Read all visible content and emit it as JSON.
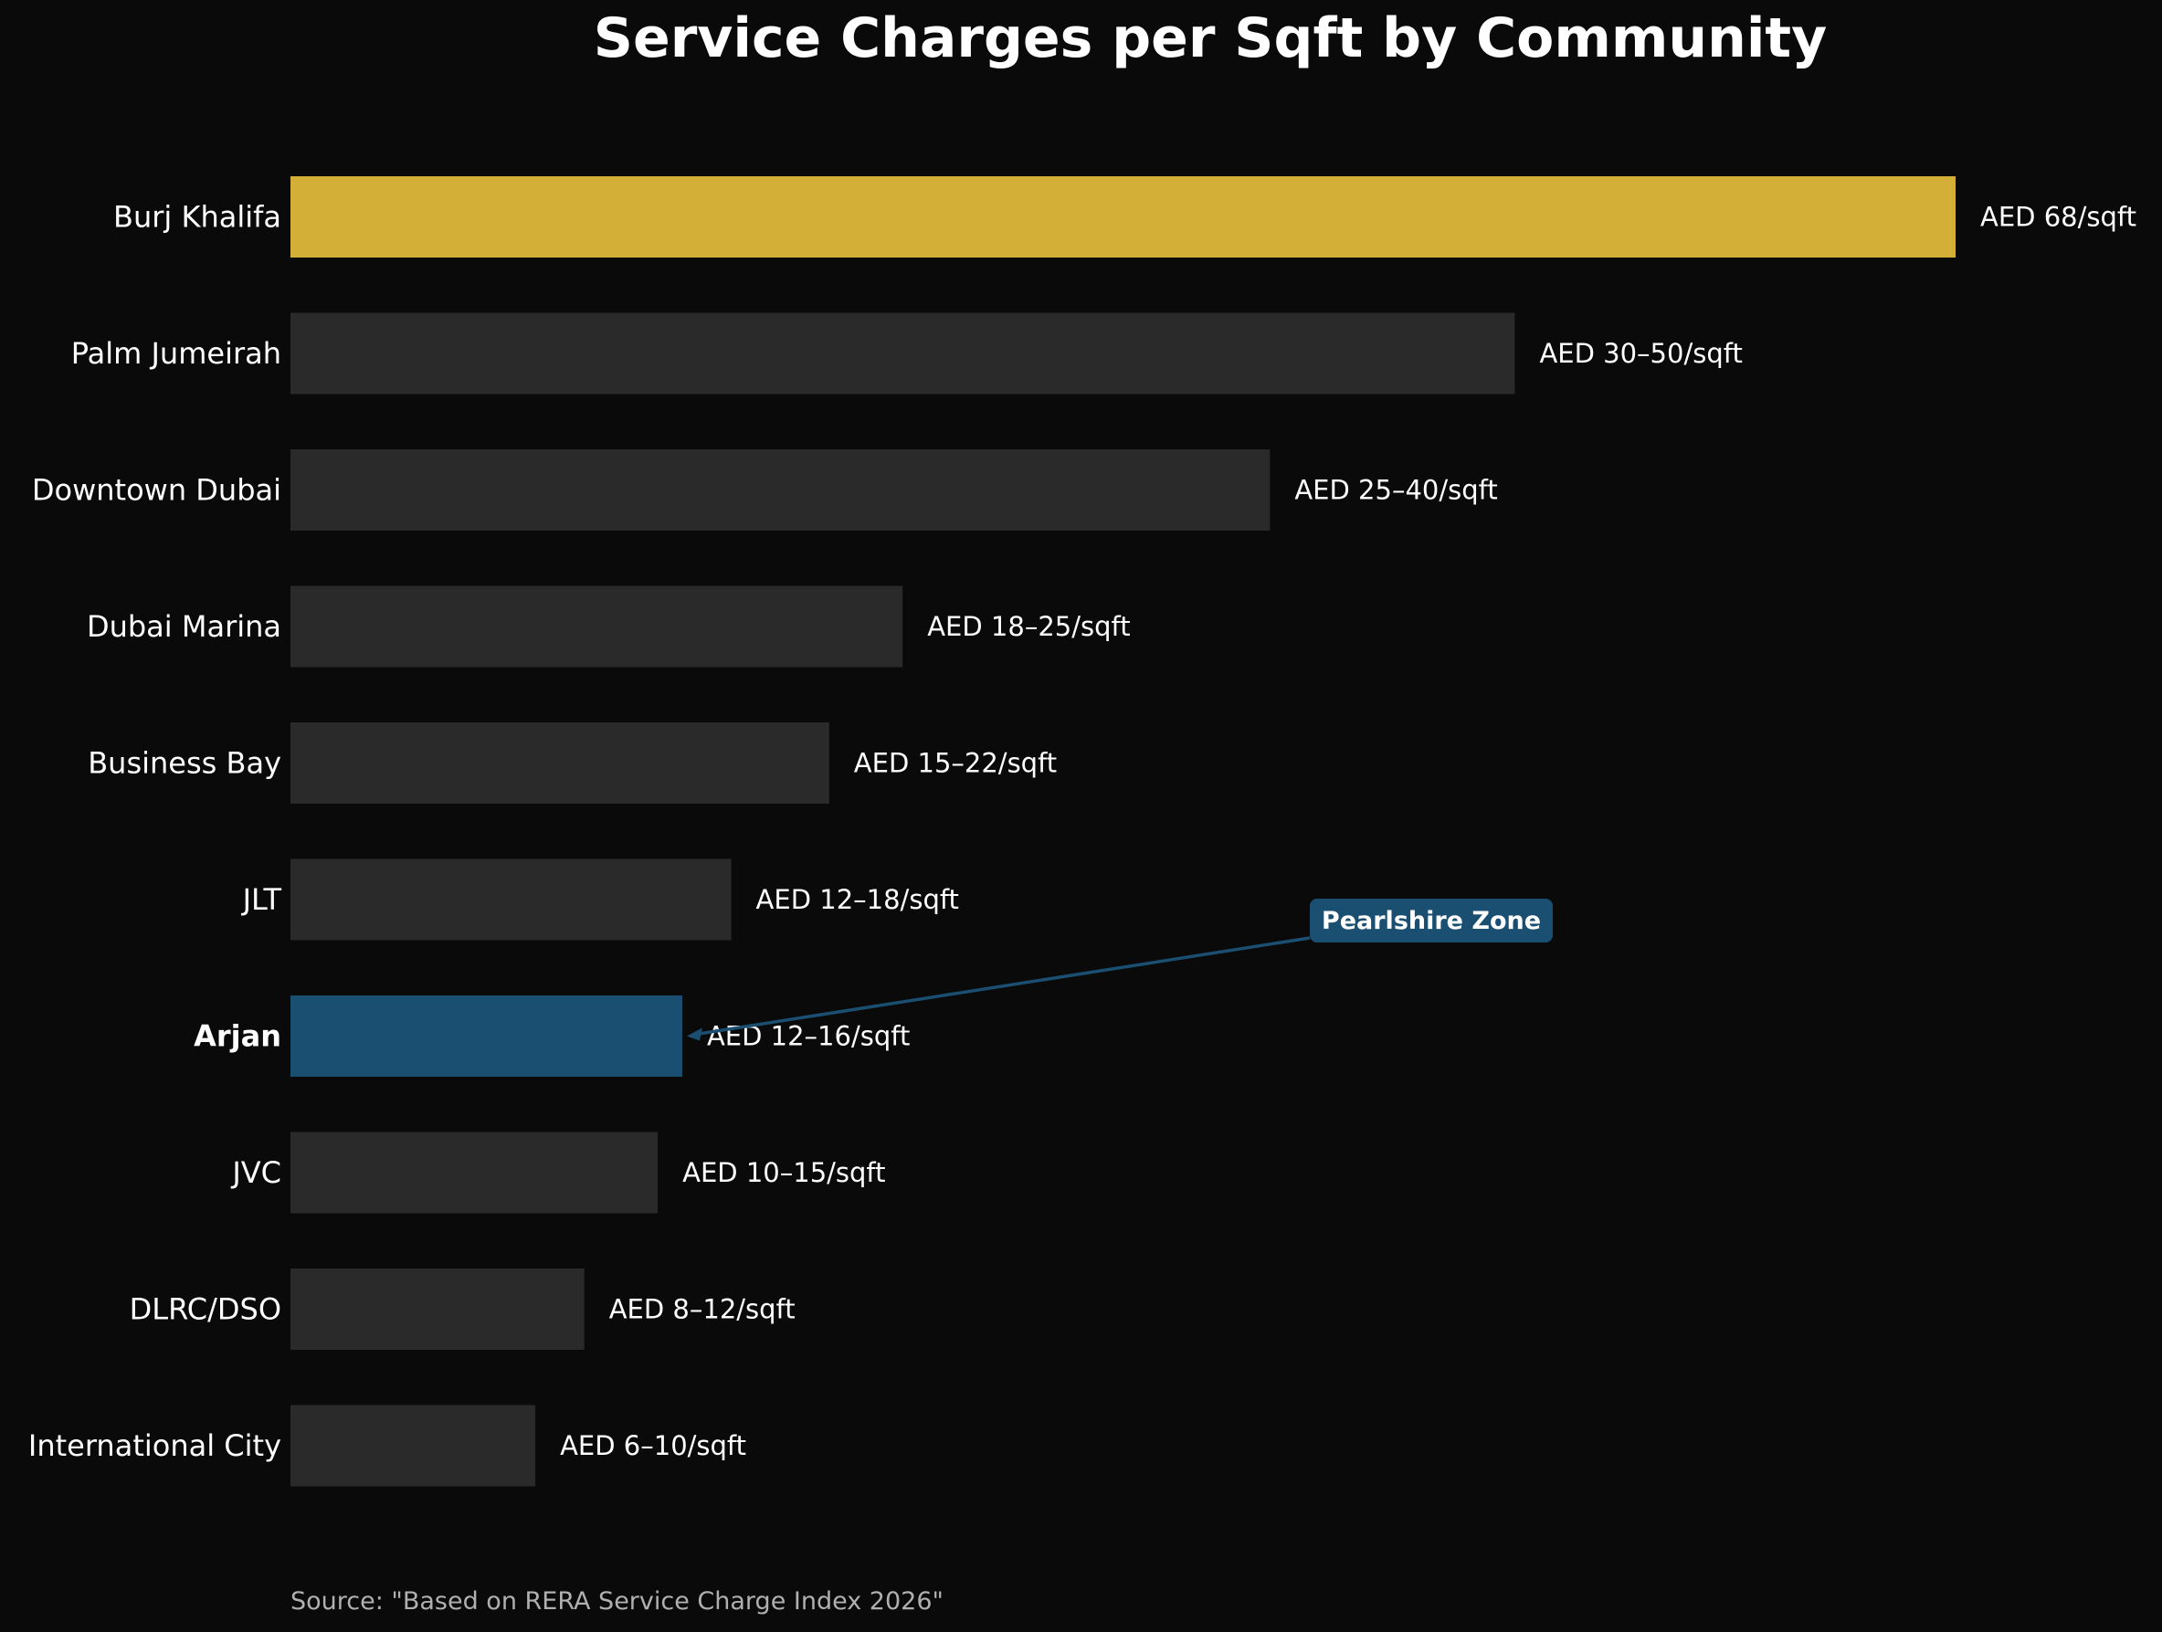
{
  "colors": {
    "background": "#0a0a0a",
    "bar_default": "#2a2a2a",
    "bar_top": "#d4af37",
    "bar_highlight": "#1b4f72",
    "text": "#ffffff",
    "source_text": "#b0b0b0"
  },
  "chart_data": {
    "type": "bar",
    "orientation": "horizontal",
    "title": "Service Charges per Sqft by Community",
    "xlabel": "",
    "ylabel": "",
    "grid": false,
    "xlim": [
      0,
      68
    ],
    "categories": [
      "Burj Khalifa",
      "Palm Jumeirah",
      "Downtown Dubai",
      "Dubai Marina",
      "Business Bay",
      "JLT",
      "Arjan",
      "JVC",
      "DLRC/DSO",
      "International City"
    ],
    "values": [
      68,
      50,
      40,
      25,
      22,
      18,
      16,
      15,
      12,
      10
    ],
    "value_labels": [
      "AED 68/sqft",
      "AED 30–50/sqft",
      "AED 25–40/sqft",
      "AED 18–25/sqft",
      "AED 15–22/sqft",
      "AED 12–18/sqft",
      "AED 12–16/sqft",
      "AED 10–15/sqft",
      "AED 8–12/sqft",
      "AED 6–10/sqft"
    ],
    "bar_colors": [
      "#d4af37",
      "#2a2a2a",
      "#2a2a2a",
      "#2a2a2a",
      "#2a2a2a",
      "#2a2a2a",
      "#1b4f72",
      "#2a2a2a",
      "#2a2a2a",
      "#2a2a2a"
    ],
    "bold_categories": [
      "Arjan"
    ],
    "annotation": {
      "text": "Pearlshire Zone",
      "target_category": "Arjan",
      "box_color": "#1b4f72",
      "arrow_color": "#1b4f72"
    },
    "source": "Source: \"Based on RERA Service Charge Index 2026\""
  }
}
